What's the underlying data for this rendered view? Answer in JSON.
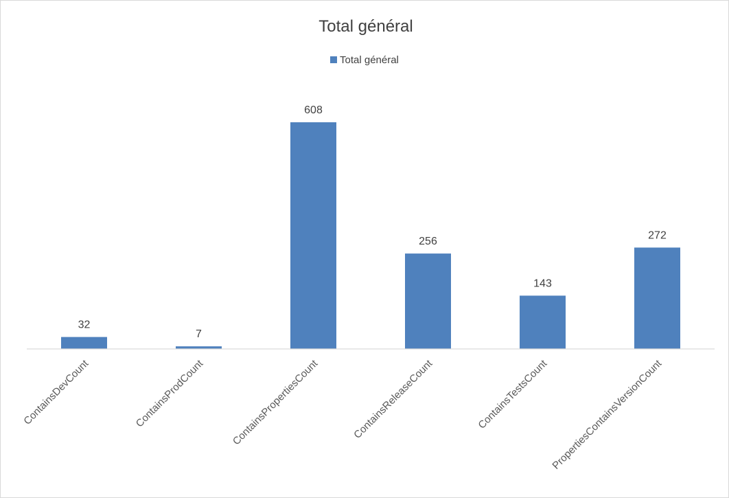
{
  "chart_data": {
    "type": "bar",
    "title": "Total général",
    "xlabel": "",
    "ylabel": "",
    "categories": [
      "ContainsDevCount",
      "ContainsProdCount",
      "ContainsPropertiesCount",
      "ContainsReleaseCount",
      "ContainsTestsCount",
      "PropertiesContainsVersionCount"
    ],
    "series": [
      {
        "name": "Total général",
        "values": [
          32,
          7,
          608,
          256,
          143,
          272
        ]
      }
    ],
    "ylim": [
      0,
      700
    ],
    "grid": false,
    "legend": "top",
    "data_labels": true,
    "bar_color": "#4f81bd"
  }
}
